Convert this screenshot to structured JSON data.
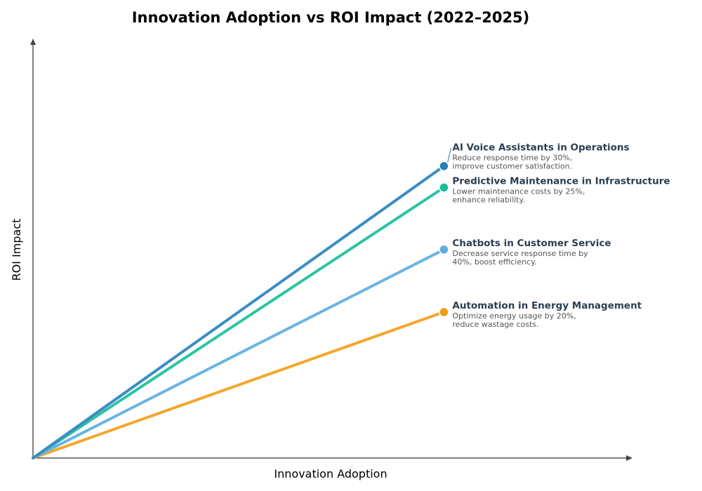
{
  "chart_data": {
    "type": "line",
    "title": "Innovation Adoption vs ROI Impact (2022–2025)",
    "xlabel": "Innovation Adoption",
    "ylabel": "ROI Impact",
    "xlim": [
      0,
      10.2
    ],
    "ylim": [
      0,
      10
    ],
    "grid": false,
    "series": [
      {
        "name": "AI Voice Assistants in Operations",
        "desc": [
          "Reduce response time by 30%,",
          "improve customer satisfaction."
        ],
        "x": [
          0,
          7
        ],
        "y": [
          0,
          6.96
        ],
        "color": "#2980b9",
        "line_color": "#3b8dc4"
      },
      {
        "name": "Predictive Maintenance in Infrastructure",
        "desc": [
          "Lower maintenance costs by 25%,",
          "enhance reliability."
        ],
        "x": [
          0,
          7
        ],
        "y": [
          0,
          6.45
        ],
        "color": "#1abc9c",
        "line_color": "#2cc4a3"
      },
      {
        "name": "Chatbots in Customer Service",
        "desc": [
          "Decrease service response time by",
          "40%, boost efficiency."
        ],
        "x": [
          0,
          7
        ],
        "y": [
          0,
          4.97
        ],
        "color": "#5dade2",
        "line_color": "#69b4e4"
      },
      {
        "name": "Automation in Energy Management",
        "desc": [
          "Optimize energy usage by 20%,",
          "reduce wastage costs."
        ],
        "x": [
          0,
          7
        ],
        "y": [
          0,
          3.48
        ],
        "color": "#f39c12",
        "line_color": "#f4a62a"
      }
    ]
  }
}
